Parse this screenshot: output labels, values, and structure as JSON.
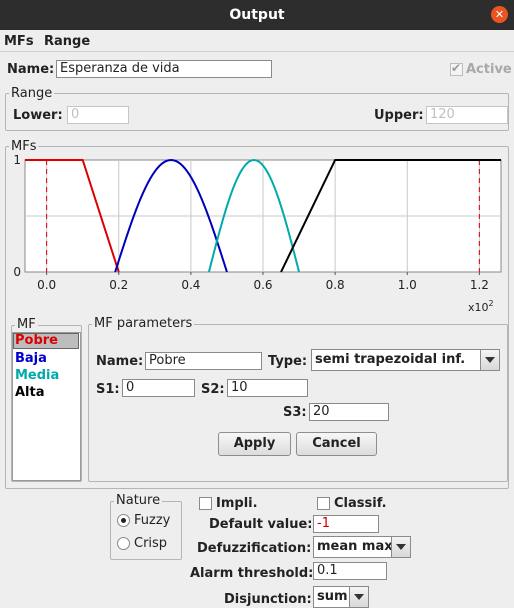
{
  "window": {
    "title": "Output"
  },
  "menu": [
    {
      "label": "MFs"
    },
    {
      "label": "Range"
    }
  ],
  "name": {
    "label": "Name:",
    "value": "Esperanza de vida"
  },
  "active": {
    "label": "Active",
    "checked": true
  },
  "range": {
    "legend": "Range",
    "lower_label": "Lower:",
    "lower_value": "0",
    "upper_label": "Upper:",
    "upper_value": "120"
  },
  "mfs_group": {
    "legend": "MFs"
  },
  "chart_data": {
    "type": "line",
    "x_range": [
      -0.06,
      1.26
    ],
    "y_range": [
      0,
      1
    ],
    "x_ticks": [
      0.0,
      0.2,
      0.4,
      0.6,
      0.8,
      1.0,
      1.2
    ],
    "x_tick_labels": [
      "0.0",
      "0.2",
      "0.4",
      "0.6",
      "0.8",
      "1.0",
      "1.2"
    ],
    "y_ticks": [
      0,
      1
    ],
    "y_tick_labels": [
      "0",
      "1"
    ],
    "x_multiplier": "x10",
    "x_multiplier_exp": "2",
    "grid": true,
    "range_markers": [
      0,
      1.2
    ],
    "series": [
      {
        "name": "Pobre",
        "color": "#dd0000",
        "kind": "polyline",
        "points": [
          [
            -0.06,
            1
          ],
          [
            0.1,
            1
          ],
          [
            0.2,
            0
          ]
        ]
      },
      {
        "name": "Baja",
        "color": "#0000bb",
        "kind": "bell",
        "a": 0.19,
        "b": 0.5
      },
      {
        "name": "Media",
        "color": "#00aaaa",
        "kind": "bell",
        "a": 0.45,
        "b": 0.7
      },
      {
        "name": "Alta",
        "color": "#000000",
        "kind": "polyline",
        "points": [
          [
            0.65,
            0
          ],
          [
            0.8,
            1
          ],
          [
            1.26,
            1
          ]
        ]
      }
    ]
  },
  "mf_list": {
    "legend": "MF",
    "items": [
      {
        "label": "Pobre",
        "color": "#dd0000",
        "selected": true
      },
      {
        "label": "Baja",
        "color": "#0000cc",
        "selected": false
      },
      {
        "label": "Media",
        "color": "#00aaaa",
        "selected": false
      },
      {
        "label": "Alta",
        "color": "#000000",
        "selected": false
      }
    ]
  },
  "mf_params": {
    "legend": "MF parameters",
    "name_label": "Name:",
    "name_value": "Pobre",
    "type_label": "Type:",
    "type_value": "semi trapezoidal inf.",
    "s1_label": "S1:",
    "s1_value": "0",
    "s2_label": "S2:",
    "s2_value": "10",
    "s3_label": "S3:",
    "s3_value": "20",
    "apply_label": "Apply",
    "cancel_label": "Cancel"
  },
  "nature": {
    "legend": "Nature",
    "options": [
      {
        "label": "Fuzzy",
        "selected": true
      },
      {
        "label": "Crisp",
        "selected": false
      }
    ]
  },
  "impli": {
    "label": "Impli.",
    "checked": false
  },
  "classif": {
    "label": "Classif.",
    "checked": false
  },
  "default_value": {
    "label": "Default value:",
    "value": "-1",
    "color": "#cc0000"
  },
  "defuzzification": {
    "label": "Defuzzification:",
    "value": "mean max"
  },
  "alarm_threshold": {
    "label": "Alarm threshold:",
    "value": "0.1"
  },
  "disjunction": {
    "label": "Disjunction:",
    "value": "sum"
  }
}
